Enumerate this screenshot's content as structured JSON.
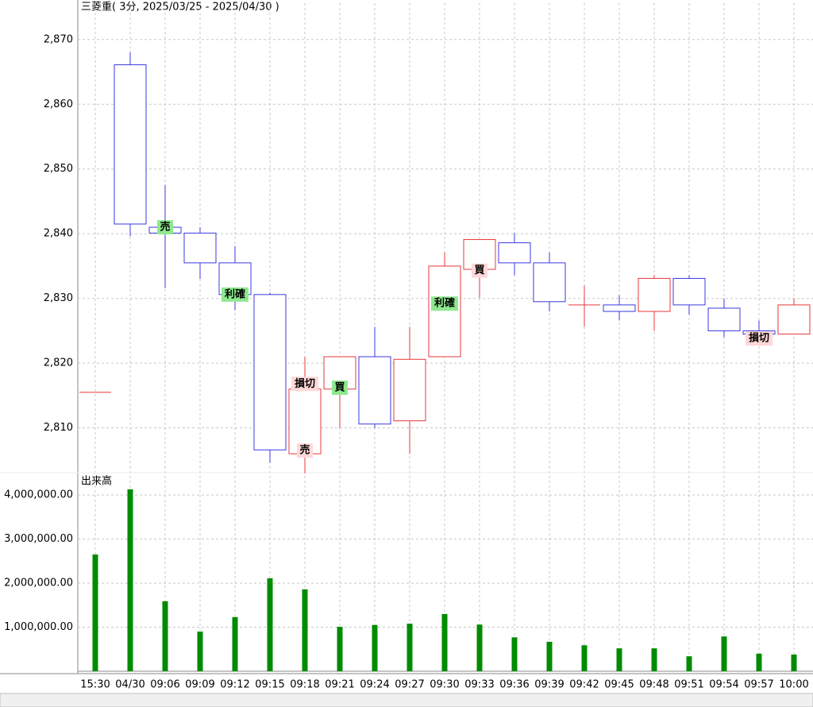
{
  "chart_data": [
    {
      "type": "candlestick",
      "title": "三菱重( 3分, 2025/03/25 - 2025/04/30 )",
      "up_color": "#e8393b",
      "down_color": "#3a3ae0",
      "ylim": [
        2803.7,
        2873.9
      ],
      "yticks": [
        {
          "value": 2810,
          "label": "2,810"
        },
        {
          "value": 2820,
          "label": "2,820"
        },
        {
          "value": 2830,
          "label": "2,830"
        },
        {
          "value": 2840,
          "label": "2,840"
        },
        {
          "value": 2850,
          "label": "2,850"
        },
        {
          "value": 2860,
          "label": "2,860"
        },
        {
          "value": 2870,
          "label": "2,870"
        }
      ],
      "grid": true,
      "open": [
        2815.5,
        2866.1,
        2841,
        2840.1,
        2835.5,
        2830.6,
        2806,
        2816,
        2821,
        2811.1,
        2821,
        2834.5,
        2838.6,
        2835.5,
        2829,
        2829,
        2828,
        2833.1,
        2828.5,
        2825,
        2824.5
      ],
      "high": [
        2815.5,
        2868,
        2847.5,
        2841,
        2838.1,
        2830.9,
        2821,
        2821,
        2825.6,
        2825.6,
        2837.1,
        2839.1,
        2840.1,
        2837.1,
        2832,
        2830.5,
        2833.6,
        2833.6,
        2830,
        2826.6,
        2830
      ],
      "low": [
        2815.5,
        2839.6,
        2831.6,
        2833,
        2828.2,
        2804.6,
        2803,
        2810,
        2810,
        2806,
        2821,
        2830.1,
        2833.6,
        2828,
        2825.6,
        2826.6,
        2825,
        2827.5,
        2824,
        2823,
        2824.5
      ],
      "close": [
        2815.5,
        2841.5,
        2840.1,
        2835.5,
        2830.6,
        2806.6,
        2816,
        2821,
        2810.6,
        2820.6,
        2835,
        2839.1,
        2835.5,
        2829.5,
        2829,
        2828,
        2833.1,
        2829,
        2825,
        2824.5,
        2829
      ],
      "annotations": [
        {
          "index": 2,
          "text": "売",
          "value": 2841,
          "color": "#8fe88f"
        },
        {
          "index": 4,
          "text": "利確",
          "value": 2830.6,
          "color": "#8fe88f"
        },
        {
          "index": 6,
          "text": "損切",
          "value": 2816.8,
          "color": "#ffd8d8"
        },
        {
          "index": 6,
          "text": "売",
          "value": 2806.5,
          "color": "#ffd8d8"
        },
        {
          "index": 7,
          "text": "買",
          "value": 2816.2,
          "color": "#8fe88f"
        },
        {
          "index": 10,
          "text": "利確",
          "value": 2829.2,
          "color": "#8fe88f"
        },
        {
          "index": 11,
          "text": "買",
          "value": 2834.3,
          "color": "#ffd8d8"
        },
        {
          "index": 19,
          "text": "損切",
          "value": 2823.8,
          "color": "#ffd8d8"
        }
      ]
    },
    {
      "type": "bar",
      "title": "出来高",
      "color": "#008c00",
      "categories": [
        "15:30",
        "04/30",
        "09:06",
        "09:09",
        "09:12",
        "09:15",
        "09:18",
        "09:21",
        "09:24",
        "09:27",
        "09:30",
        "09:33",
        "09:36",
        "09:39",
        "09:42",
        "09:45",
        "09:48",
        "09:51",
        "09:54",
        "09:57",
        "10:00"
      ],
      "values": [
        2650000,
        4130000,
        1590000,
        900000,
        1230000,
        2110000,
        1860000,
        1010000,
        1050000,
        1080000,
        1300000,
        1060000,
        770000,
        670000,
        590000,
        520000,
        520000,
        340000,
        790000,
        400000,
        380000
      ],
      "ylim": [
        0,
        4400000
      ],
      "yticks": [
        {
          "value": 1000000,
          "label": "1,000,000.00"
        },
        {
          "value": 2000000,
          "label": "2,000,000.00"
        },
        {
          "value": 3000000,
          "label": "3,000,000.00"
        },
        {
          "value": 4000000,
          "label": "4,000,000.00"
        }
      ],
      "grid": true
    }
  ]
}
